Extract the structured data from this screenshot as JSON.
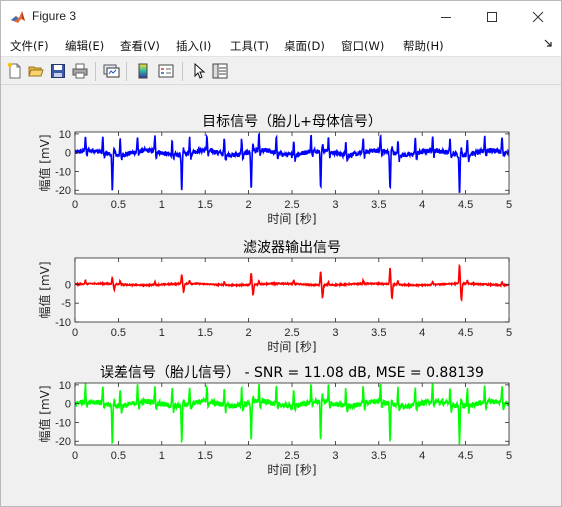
{
  "window": {
    "title": "Figure 3",
    "colors": {
      "titlebar": "#ffffff",
      "background": "#f0f0f0"
    }
  },
  "menu": {
    "items": [
      "文件(F)",
      "编辑(E)",
      "查看(V)",
      "插入(I)",
      "工具(T)",
      "桌面(D)",
      "窗口(W)",
      "帮助(H)"
    ]
  },
  "toolbar": {
    "icons": [
      "new-figure-icon",
      "open-file-icon",
      "save-icon",
      "print-icon",
      "link-plot-icon",
      "insert-colorbar-icon",
      "insert-legend-icon",
      "edit-plot-arrow-icon",
      "property-inspector-icon"
    ]
  },
  "chart_data": [
    {
      "type": "line",
      "title": "目标信号（胎儿+母体信号）",
      "xlabel": "时间 [秒]",
      "ylabel": "幅值 [mV]",
      "xlim": [
        0,
        5
      ],
      "ylim": [
        -22,
        11
      ],
      "xticks": [
        "0",
        "0.5",
        "1",
        "1.5",
        "2",
        "2.5",
        "3",
        "3.5",
        "4",
        "4.5",
        "5"
      ],
      "yticks": [
        "10",
        "0",
        "-10",
        "-20"
      ],
      "ytick_values": [
        10,
        0,
        -10,
        -20
      ],
      "series": [
        {
          "color": "#0000ff",
          "mix": "fetal+maternal",
          "fetal_amp": 8,
          "maternal_amp": -20,
          "noise": 1.3
        }
      ]
    },
    {
      "type": "line",
      "title": "滤波器输出信号",
      "xlabel": "时间 [秒]",
      "ylabel": "幅值 [mV]",
      "xlim": [
        0,
        5
      ],
      "ylim": [
        -10,
        7
      ],
      "xticks": [
        "0",
        "0.5",
        "1",
        "1.5",
        "2",
        "2.5",
        "3",
        "3.5",
        "4",
        "4.5",
        "5"
      ],
      "yticks": [
        "0",
        "-5",
        "-10"
      ],
      "ytick_values": [
        0,
        -5,
        -10
      ],
      "series": [
        {
          "color": "#ff0000",
          "mix": "maternal-growing",
          "maternal_amp": 5,
          "noise": 0.15
        }
      ]
    },
    {
      "type": "line",
      "title": "误差信号（胎儿信号） - SNR = 11.08 dB, MSE = 0.88139",
      "xlabel": "时间 [秒]",
      "ylabel": "幅值 [mV]",
      "xlim": [
        0,
        5
      ],
      "ylim": [
        -22,
        11
      ],
      "xticks": [
        "0",
        "0.5",
        "1",
        "1.5",
        "2",
        "2.5",
        "3",
        "3.5",
        "4",
        "4.5",
        "5"
      ],
      "yticks": [
        "10",
        "0",
        "-10",
        "-20"
      ],
      "ytick_values": [
        10,
        0,
        -10,
        -20
      ],
      "series": [
        {
          "color": "#00ff00",
          "mix": "fetal+maternal",
          "fetal_amp": 9,
          "maternal_amp": -20,
          "noise": 1.4
        }
      ]
    }
  ]
}
